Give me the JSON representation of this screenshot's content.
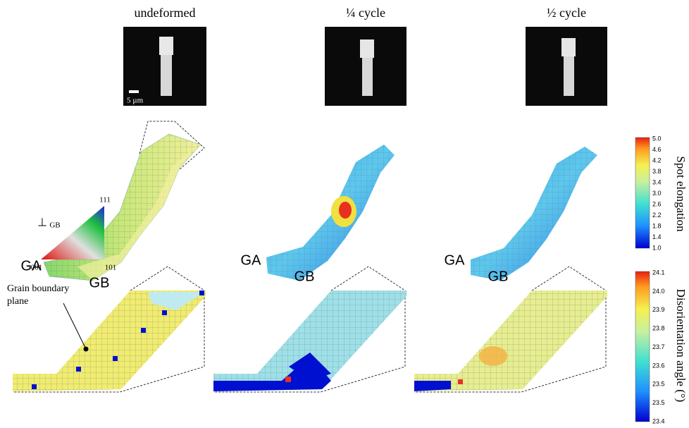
{
  "columns": [
    {
      "title": "undeformed",
      "labels": {
        "ga": "GA",
        "gb": "GB"
      }
    },
    {
      "title": "¼ cycle",
      "labels": {
        "ga": "GA",
        "gb": "GB"
      }
    },
    {
      "title": "½ cycle",
      "labels": {
        "ga": "GA",
        "gb": "GB"
      }
    }
  ],
  "scale_bar": "5 µm",
  "ipf_legend": {
    "perp": "⊥",
    "axis": "GB",
    "top": "111",
    "left": "001",
    "right": "101"
  },
  "annotation": {
    "lines": [
      "Grain boundary",
      "plane"
    ]
  },
  "colorbars": [
    {
      "label": "Spot elongation",
      "ticks": [
        "5.0",
        "4.6",
        "4.2",
        "3.8",
        "3.4",
        "3.0",
        "2.6",
        "2.2",
        "1.8",
        "1.4",
        "1.0"
      ]
    },
    {
      "label": "Disorientation angle (°)",
      "ticks": [
        "24.1",
        "24.0",
        "23.9",
        "23.8",
        "23.7",
        "23.6",
        "23.5",
        "23.5",
        "23.4"
      ]
    }
  ]
}
